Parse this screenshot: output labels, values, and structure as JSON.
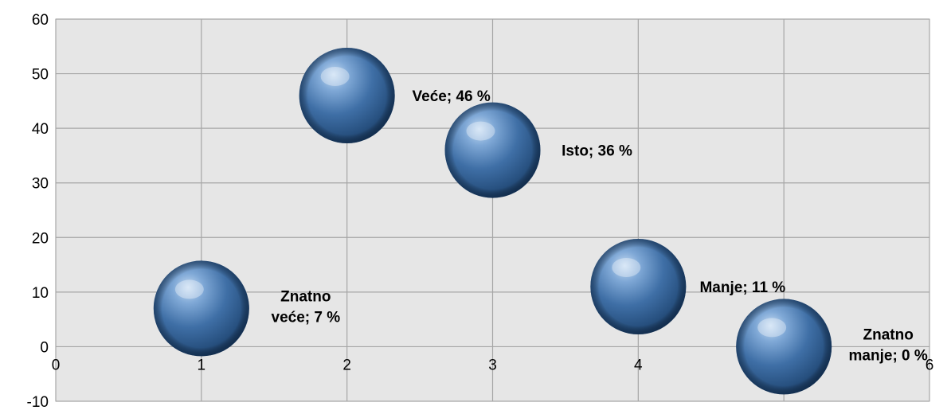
{
  "chart_data": {
    "type": "bubble",
    "title": "",
    "xlabel": "",
    "ylabel": "",
    "xlim": [
      0,
      6
    ],
    "ylim": [
      -10,
      60
    ],
    "x_ticks": [
      "0",
      "1",
      "2",
      "3",
      "4",
      "5",
      "6"
    ],
    "y_ticks": [
      "-10",
      "0",
      "10",
      "20",
      "30",
      "40",
      "50",
      "60"
    ],
    "grid": true,
    "legend": "none",
    "colors": {
      "plot_background": "#e6e6e6",
      "gridline": "#a6a6a6",
      "bubble": "#4f81bd"
    },
    "points": [
      {
        "x": 1,
        "y": 7,
        "size": 1,
        "label": [
          "Znatno",
          "veće; 7 %"
        ]
      },
      {
        "x": 2,
        "y": 46,
        "size": 1,
        "label": [
          "Veće; 46 %"
        ]
      },
      {
        "x": 3,
        "y": 36,
        "size": 1,
        "label": [
          "Isto; 36 %"
        ]
      },
      {
        "x": 4,
        "y": 11,
        "size": 1,
        "label": [
          "Manje; 11 %"
        ]
      },
      {
        "x": 5,
        "y": 0,
        "size": 1,
        "label": [
          "Znatno",
          "manje; 0  %"
        ]
      }
    ]
  }
}
